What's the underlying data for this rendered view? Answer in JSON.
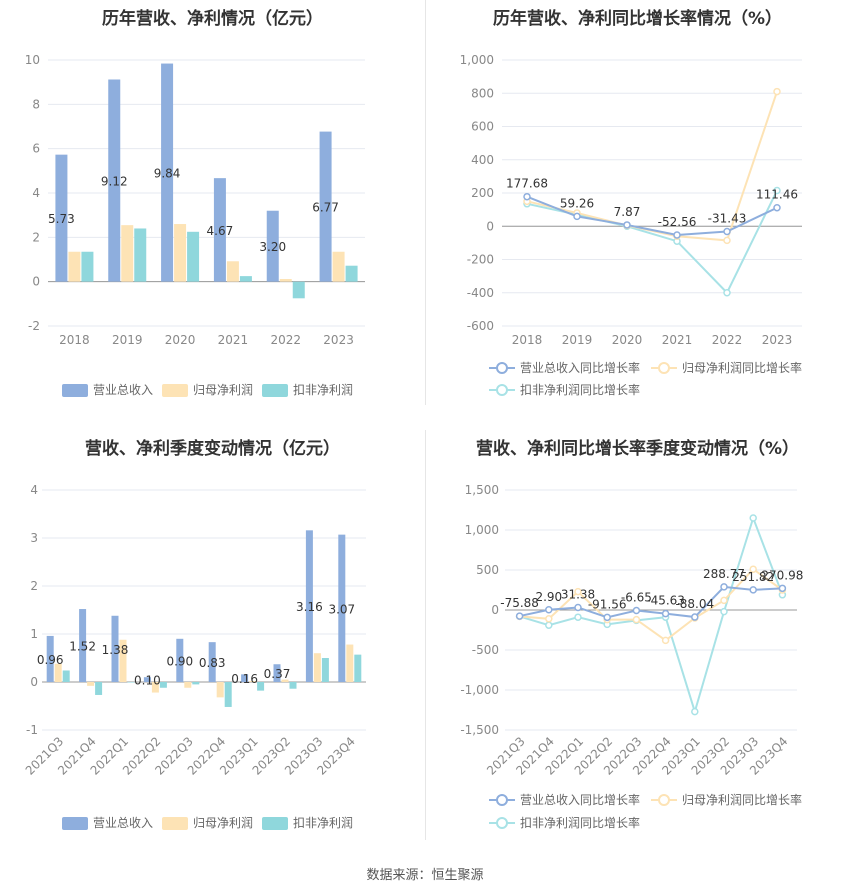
{
  "source": "数据来源：恒生聚源",
  "colors": {
    "revenue": "#8eaedd",
    "net_profit": "#fde3b5",
    "deducted_profit": "#8fd7dc",
    "revenue_line": "#8eaedd",
    "net_line": "#fde3b5",
    "deducted_line": "#a8e2e6"
  },
  "chart_data": [
    {
      "type": "bar",
      "title": "历年营收、净利情况（亿元）",
      "categories": [
        "2018",
        "2019",
        "2020",
        "2021",
        "2022",
        "2023"
      ],
      "ylim": [
        -2,
        10
      ],
      "yticks": [
        "10",
        "8",
        "6",
        "4",
        "2",
        "0",
        "-2"
      ],
      "series": [
        {
          "name": "营业总收入",
          "values": [
            5.73,
            9.12,
            9.84,
            4.67,
            3.2,
            6.77
          ],
          "labels": [
            "5.73",
            "9.12",
            "9.84",
            "4.67",
            "3.20",
            "6.77"
          ]
        },
        {
          "name": "归母净利润",
          "values": [
            1.35,
            2.55,
            2.6,
            0.92,
            0.12,
            1.35
          ]
        },
        {
          "name": "扣非净利润",
          "values": [
            1.35,
            2.4,
            2.25,
            0.25,
            -0.75,
            0.72
          ]
        }
      ],
      "grid": true,
      "legend": "bottom"
    },
    {
      "type": "line",
      "title": "历年营收、净利同比增长率情况（%）",
      "categories": [
        "2018",
        "2019",
        "2020",
        "2021",
        "2022",
        "2023"
      ],
      "ylim": [
        -600,
        1000
      ],
      "yticks": [
        "1,000",
        "800",
        "600",
        "400",
        "200",
        "0",
        "-200",
        "-400",
        "-600"
      ],
      "series": [
        {
          "name": "营业总收入同比增长率",
          "values": [
            177.68,
            59.26,
            7.87,
            -52.56,
            -31.43,
            111.46
          ],
          "labels": [
            "177.68",
            "59.26",
            "7.87",
            "-52.56",
            "-31.43",
            "111.46"
          ]
        },
        {
          "name": "归母净利润同比增长率",
          "values": [
            150,
            80,
            5,
            -60,
            -85,
            810
          ]
        },
        {
          "name": "扣非净利润同比增长率",
          "values": [
            135,
            70,
            0,
            -90,
            -400,
            215
          ]
        }
      ],
      "grid": true,
      "legend": "bottom"
    },
    {
      "type": "bar",
      "title": "营收、净利季度变动情况（亿元）",
      "categories": [
        "2021Q3",
        "2021Q4",
        "2022Q1",
        "2022Q2",
        "2022Q3",
        "2022Q4",
        "2023Q1",
        "2023Q2",
        "2023Q3",
        "2023Q4"
      ],
      "ylim": [
        -1,
        4
      ],
      "yticks": [
        "4",
        "3",
        "2",
        "1",
        "0",
        "-1"
      ],
      "series": [
        {
          "name": "营业总收入",
          "values": [
            0.96,
            1.52,
            1.38,
            0.1,
            0.9,
            0.83,
            0.16,
            0.37,
            3.16,
            3.07
          ],
          "labels": [
            "0.96",
            "1.52",
            "1.38",
            "0.10",
            "0.90",
            "0.83",
            "0.16",
            "0.37",
            "3.16",
            "3.07"
          ]
        },
        {
          "name": "归母净利润",
          "values": [
            0.38,
            -0.08,
            0.88,
            -0.22,
            -0.12,
            -0.32,
            0.02,
            0.05,
            0.6,
            0.78
          ]
        },
        {
          "name": "扣非净利润",
          "values": [
            0.24,
            -0.27,
            0.0,
            -0.12,
            -0.05,
            -0.52,
            -0.18,
            -0.14,
            0.5,
            0.57
          ]
        }
      ],
      "grid": true,
      "legend": "bottom"
    },
    {
      "type": "line",
      "title": "营收、净利同比增长率季度变动情况（%）",
      "categories": [
        "2021Q3",
        "2021Q4",
        "2022Q1",
        "2022Q2",
        "2022Q3",
        "2022Q4",
        "2023Q1",
        "2023Q2",
        "2023Q3",
        "2023Q4"
      ],
      "ylim": [
        -1500,
        1500
      ],
      "yticks": [
        "1,500",
        "1,000",
        "500",
        "0",
        "-500",
        "-1,000",
        "-1,500"
      ],
      "series": [
        {
          "name": "营业总收入同比增长率",
          "values": [
            -75.88,
            2.9,
            31.38,
            -91.56,
            -6.65,
            -45.63,
            -88.04,
            288.77,
            251.82,
            270.98
          ],
          "labels": [
            "-75.88",
            "2.90",
            "31.38",
            "-91.56",
            "-6.65",
            "-45.63",
            "-88.04",
            "288.77",
            "251.82",
            "270.98"
          ]
        },
        {
          "name": "归母净利润同比增长率",
          "values": [
            -80,
            -110,
            230,
            -120,
            -120,
            -380,
            -100,
            120,
            510,
            250
          ]
        },
        {
          "name": "扣非净利润同比增长率",
          "values": [
            -80,
            -190,
            -90,
            -180,
            -130,
            -90,
            -1270,
            -20,
            1150,
            190
          ]
        }
      ],
      "grid": true,
      "legend": "bottom"
    }
  ]
}
